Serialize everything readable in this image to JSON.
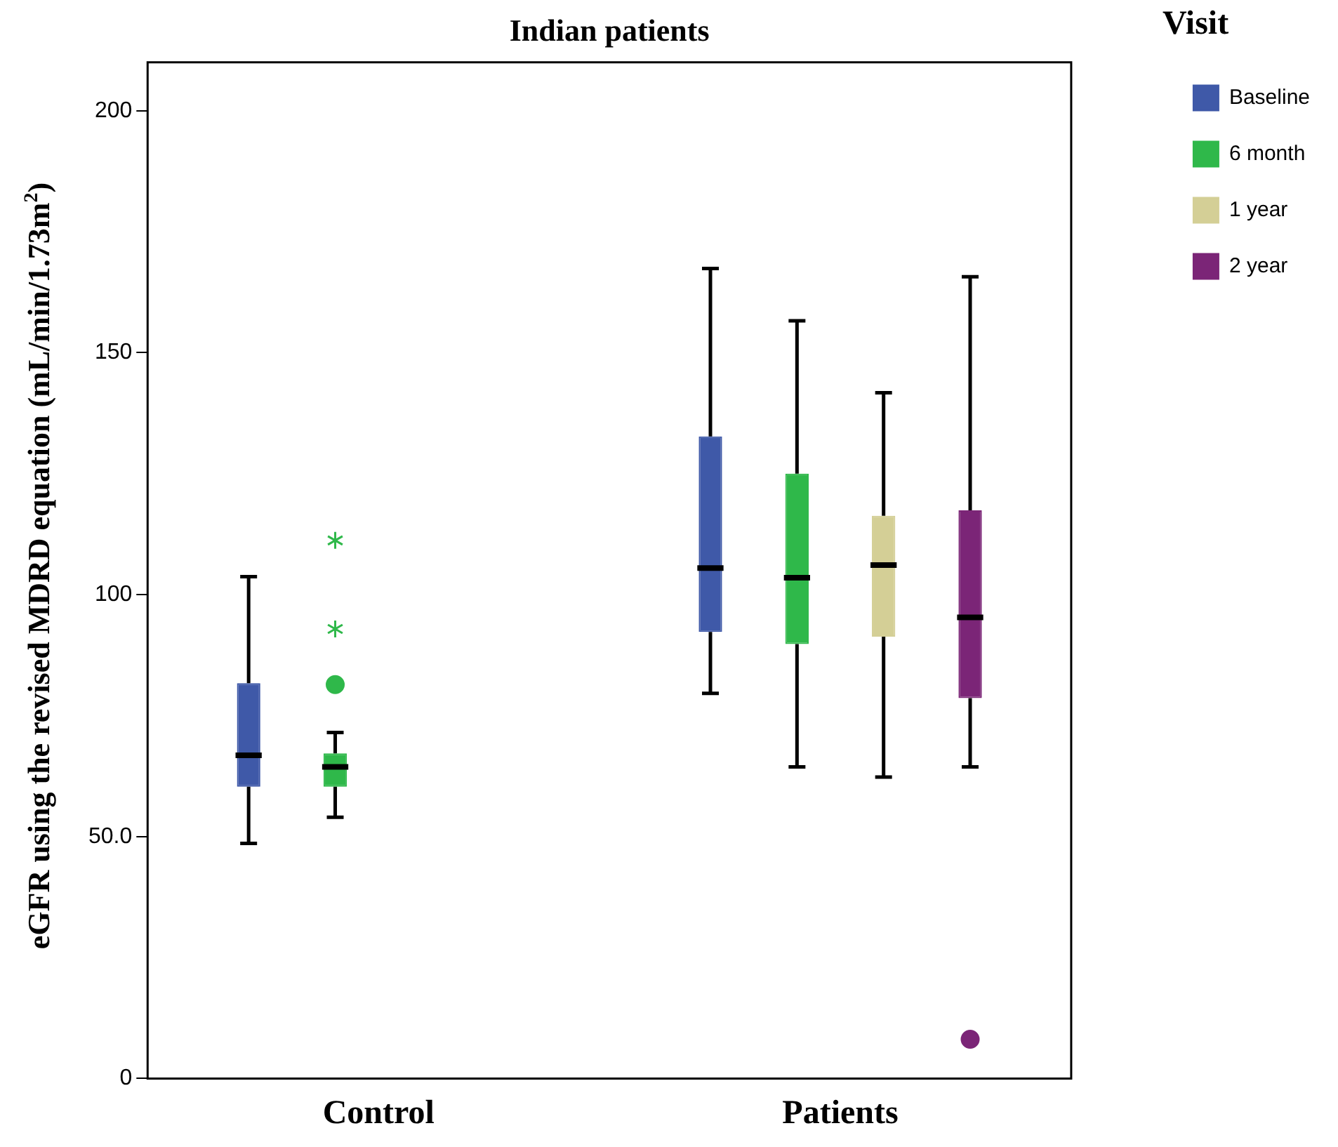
{
  "chart_data": {
    "type": "box",
    "title": "Indian patients",
    "ylabel": "eGFR using the revised MDRD equation (mL/min/1.73m$^{2}$)",
    "legend_title": "Visit",
    "legend": "top right",
    "categories": [
      "Control",
      "Patients"
    ],
    "ylim": [
      0,
      210
    ],
    "yticks": [
      0,
      {
        "value": 50,
        "label": "50.0"
      },
      100,
      150,
      200
    ],
    "grid": false,
    "series": [
      {
        "name": "Baseline",
        "color": "#3f59a8",
        "boxes": [
          {
            "low": 48.6,
            "q1": 60.3,
            "median": 66.8,
            "q3": 81.7,
            "high": 103.7
          },
          {
            "low": 79.6,
            "q1": 92.3,
            "median": 105.5,
            "q3": 132.7,
            "high": 167.4
          }
        ]
      },
      {
        "name": "6 month",
        "color": "#2fb84a",
        "boxes": [
          {
            "low": 54,
            "q1": 60.3,
            "median": 64.4,
            "q3": 67.2,
            "high": 71.5,
            "outliers": [
              81.4,
              92.9,
              111.2
            ]
          },
          {
            "low": 64.4,
            "q1": 89.8,
            "median": 103.5,
            "q3": 125,
            "high": 156.6
          }
        ]
      },
      {
        "name": "1 year",
        "color": "#d4cf96",
        "boxes": [
          null,
          {
            "low": 62.3,
            "q1": 91.3,
            "median": 106.1,
            "q3": 116.3,
            "high": 141.7
          }
        ]
      },
      {
        "name": "2 year",
        "color": "#7b2577",
        "boxes": [
          null,
          {
            "low": 64.4,
            "q1": 78.6,
            "median": 95.3,
            "q3": 117.4,
            "high": 165.7,
            "outliers": [
              8.1
            ]
          }
        ]
      }
    ]
  }
}
